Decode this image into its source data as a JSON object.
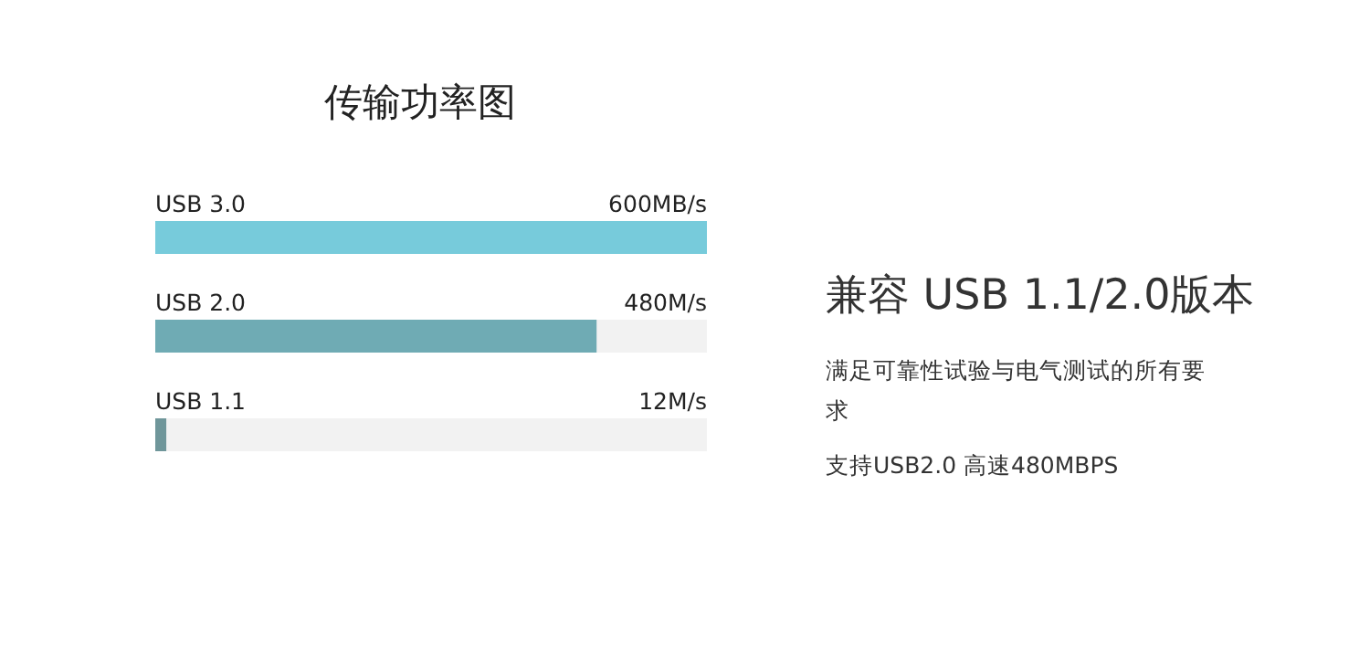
{
  "chart_data": {
    "type": "bar",
    "orientation": "horizontal",
    "title": "传输功率图",
    "categories": [
      "USB 3.0",
      "USB 2.0",
      "USB 1.1"
    ],
    "values": [
      600,
      480,
      12
    ],
    "colors": [
      "#77cbdb",
      "#6fabb4",
      "#6f969a"
    ],
    "value_labels": [
      "600MB/s",
      "480M/s",
      "12M/s"
    ],
    "annotations": [
      "兼容 USB 1.1/2.0版本",
      "满足可靠性试验与电气测试的所有要求",
      "支持USB2.0 高速480MBPS"
    ]
  }
}
